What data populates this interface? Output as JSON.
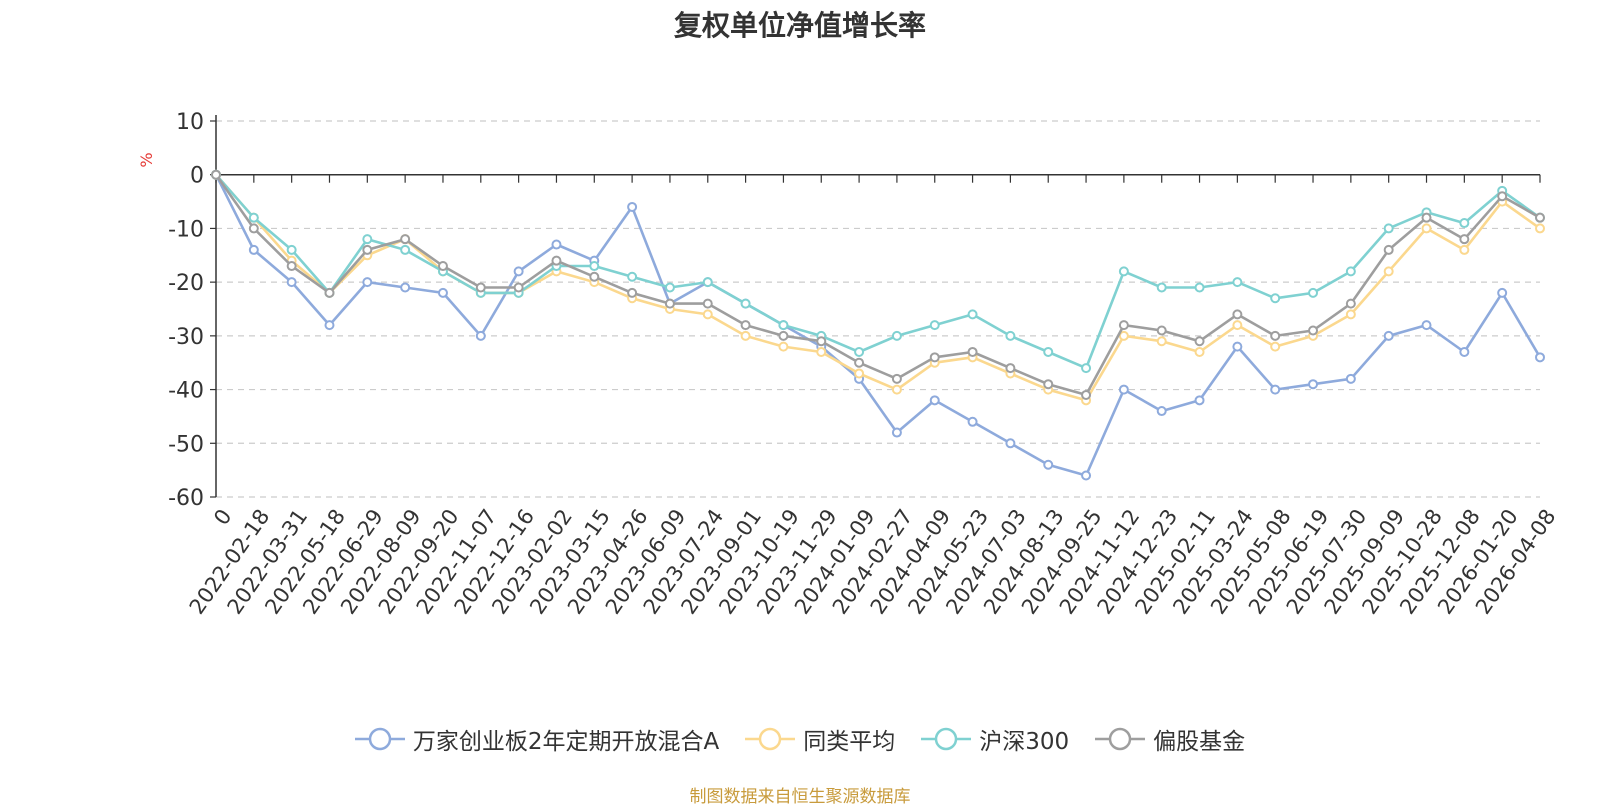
{
  "chart_data": {
    "type": "line",
    "title": "复权单位净值增长率",
    "ylabel": "%",
    "ylim": [
      -60,
      10
    ],
    "yticks": [
      10,
      0,
      -10,
      -20,
      -30,
      -40,
      -50,
      -60
    ],
    "categories": [
      "0",
      "2022-02-18",
      "2022-03-31",
      "2022-05-18",
      "2022-06-29",
      "2022-08-09",
      "2022-09-20",
      "2022-11-07",
      "2022-12-16",
      "2023-02-02",
      "2023-03-15",
      "2023-04-26",
      "2023-06-09",
      "2023-07-24",
      "2023-09-01",
      "2023-10-19",
      "2023-11-29",
      "2024-01-09",
      "2024-02-27",
      "2024-04-09",
      "2024-05-23",
      "2024-07-03",
      "2024-08-13",
      "2024-09-25",
      "2024-11-12",
      "2024-12-23",
      "2025-02-11",
      "2025-03-24",
      "2025-05-08",
      "2025-06-19",
      "2025-07-30",
      "2025-09-09",
      "2025-10-28",
      "2025-12-08",
      "2026-01-20",
      "2026-04-08"
    ],
    "series": [
      {
        "name": "万家创业板2年定期开放混合A",
        "color": "#8eaadc",
        "values": [
          0,
          -14,
          -20,
          -28,
          -20,
          -21,
          -22,
          -30,
          -18,
          -13,
          -16,
          -6,
          -24,
          -20,
          -24,
          -28,
          -32,
          -38,
          -48,
          -42,
          -46,
          -50,
          -54,
          -56,
          -40,
          -44,
          -42,
          -32,
          -40,
          -39,
          -38,
          -30,
          -28,
          -33,
          -22,
          -34
        ]
      },
      {
        "name": "同类平均",
        "color": "#fbd88e",
        "values": [
          0,
          -8,
          -16,
          -22,
          -15,
          -12,
          -18,
          -22,
          -22,
          -18,
          -20,
          -23,
          -25,
          -26,
          -30,
          -32,
          -33,
          -37,
          -40,
          -35,
          -34,
          -37,
          -40,
          -42,
          -30,
          -31,
          -33,
          -28,
          -32,
          -30,
          -26,
          -18,
          -10,
          -14,
          -5,
          -10
        ]
      },
      {
        "name": "沪深300",
        "color": "#7fd1d1",
        "values": [
          0,
          -8,
          -14,
          -22,
          -12,
          -14,
          -18,
          -22,
          -22,
          -17,
          -17,
          -19,
          -21,
          -20,
          -24,
          -28,
          -30,
          -33,
          -30,
          -28,
          -26,
          -30,
          -33,
          -36,
          -18,
          -21,
          -21,
          -20,
          -23,
          -22,
          -18,
          -10,
          -7,
          -9,
          -3,
          -8
        ]
      },
      {
        "name": "偏股基金",
        "color": "#9e9e9e",
        "values": [
          0,
          -10,
          -17,
          -22,
          -14,
          -12,
          -17,
          -21,
          -21,
          -16,
          -19,
          -22,
          -24,
          -24,
          -28,
          -30,
          -31,
          -35,
          -38,
          -34,
          -33,
          -36,
          -39,
          -41,
          -28,
          -29,
          -31,
          -26,
          -30,
          -29,
          -24,
          -14,
          -8,
          -12,
          -4,
          -8
        ]
      }
    ],
    "legend_position": "bottom-center",
    "grid": "horizontal-dashed",
    "source_note": "制图数据来自恒生聚源数据库"
  }
}
